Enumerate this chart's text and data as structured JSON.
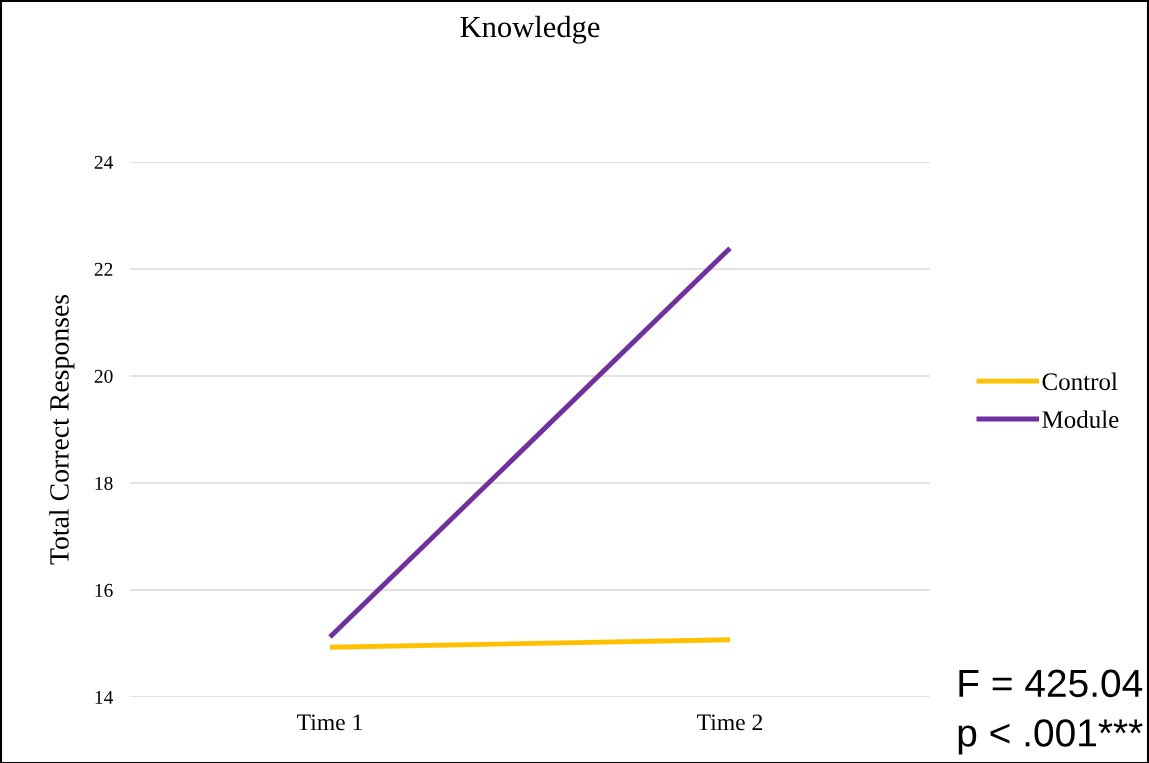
{
  "chart_data": {
    "type": "line",
    "title": "Knowledge",
    "ylabel": "Total Correct Responses",
    "categories": [
      "Time 1",
      "Time 2"
    ],
    "series": [
      {
        "name": "Control",
        "color": "#ffc000",
        "values": [
          14.93,
          15.07
        ]
      },
      {
        "name": "Module",
        "color": "#7030a0",
        "values": [
          15.12,
          22.39
        ]
      }
    ],
    "ylim": [
      14,
      24
    ],
    "yticks": [
      14,
      16,
      18,
      20,
      22,
      24
    ],
    "grid": "y",
    "legend": "right",
    "marker": "none",
    "line_style": "solid",
    "annotations": [
      "F = 425.04",
      "p < .001***"
    ]
  }
}
